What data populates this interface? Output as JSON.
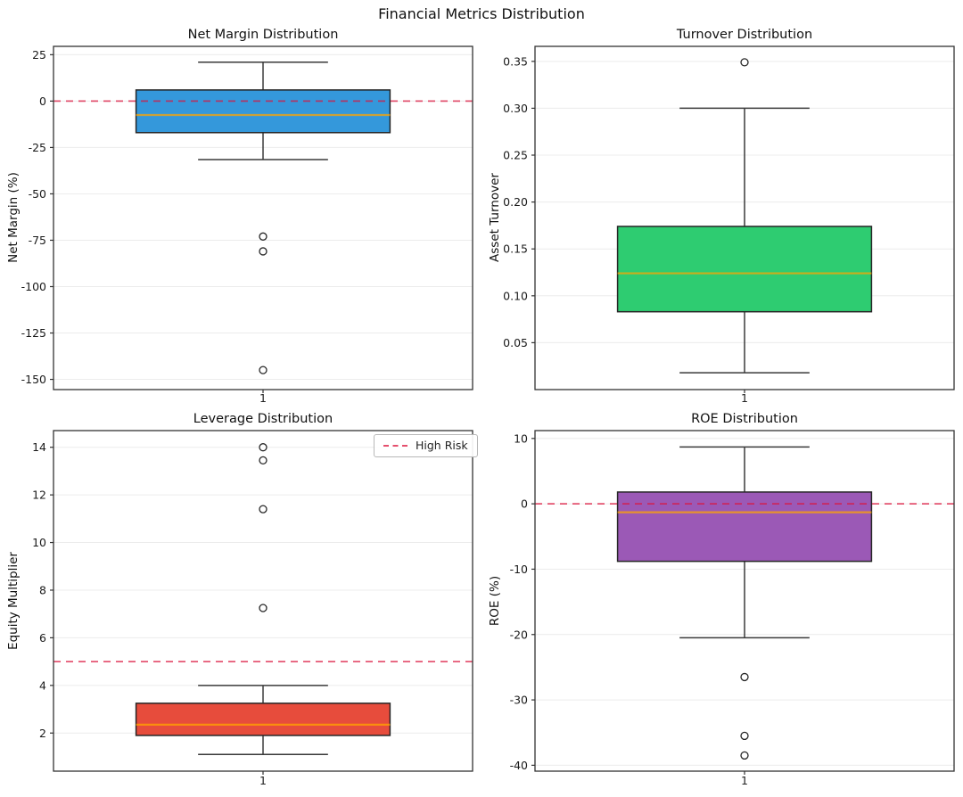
{
  "figure": {
    "title": "Financial Metrics Distribution"
  },
  "colors": {
    "box_edge": "#262626",
    "whisker": "#3a3a3a",
    "median": "#ffa500",
    "refline": "#dc143c",
    "grid": "#ececec",
    "axis": "#333333",
    "outlier_fill": "#ffffff",
    "background": "#ffffff"
  },
  "chart_data": [
    {
      "type": "box",
      "title": "Net Margin Distribution",
      "ylabel": "Net Margin (%)",
      "xlabel": "",
      "xticklabels": [
        "1"
      ],
      "yticks": [
        25,
        0,
        -25,
        -50,
        -75,
        -100,
        -125,
        -150
      ],
      "ytick_decimals": 0,
      "ylim": [
        -155.5,
        29.5
      ],
      "grid": true,
      "fill": "#3498db",
      "box": {
        "whisker_high": 21,
        "q3": 6,
        "median": -7.5,
        "q1": -17,
        "whisker_low": -31.5,
        "outliers": [
          -73,
          -81,
          -145
        ]
      },
      "refline": {
        "y": 0,
        "label": "",
        "in_legend": false
      }
    },
    {
      "type": "box",
      "title": "Turnover Distribution",
      "ylabel": "Asset Turnover",
      "xlabel": "",
      "xticklabels": [
        "1"
      ],
      "yticks": [
        0.35,
        0.3,
        0.25,
        0.2,
        0.15,
        0.1,
        0.05
      ],
      "ytick_decimals": 2,
      "ylim": [
        0.0,
        0.366
      ],
      "grid": true,
      "fill": "#2ecc71",
      "box": {
        "whisker_high": 0.3,
        "q3": 0.174,
        "median": 0.124,
        "q1": 0.083,
        "whisker_low": 0.018,
        "outliers": [
          0.349
        ]
      },
      "refline": null
    },
    {
      "type": "box",
      "title": "Leverage Distribution",
      "ylabel": "Equity Multiplier",
      "xlabel": "",
      "xticklabels": [
        "1"
      ],
      "yticks": [
        14,
        12,
        10,
        8,
        6,
        4,
        2
      ],
      "ytick_decimals": 0,
      "ylim": [
        0.4,
        14.7
      ],
      "grid": true,
      "fill": "#e74c3c",
      "box": {
        "whisker_high": 4.0,
        "q3": 3.25,
        "median": 2.35,
        "q1": 1.9,
        "whisker_low": 1.1,
        "outliers": [
          7.25,
          11.4,
          13.45,
          14.0
        ]
      },
      "refline": {
        "y": 5,
        "label": "High Risk",
        "in_legend": true
      },
      "legend_position": "upper right"
    },
    {
      "type": "box",
      "title": "ROE Distribution",
      "ylabel": "ROE (%)",
      "xlabel": "",
      "xticklabels": [
        "1"
      ],
      "yticks": [
        10,
        0,
        -10,
        -20,
        -30,
        -40
      ],
      "ytick_decimals": 0,
      "ylim": [
        -40.9,
        11.2
      ],
      "grid": true,
      "fill": "#9b59b6",
      "box": {
        "whisker_high": 8.7,
        "q3": 1.8,
        "median": -1.3,
        "q1": -8.8,
        "whisker_low": -20.5,
        "outliers": [
          -26.5,
          -35.5,
          -38.5
        ]
      },
      "refline": {
        "y": 0,
        "label": "",
        "in_legend": false
      }
    }
  ]
}
